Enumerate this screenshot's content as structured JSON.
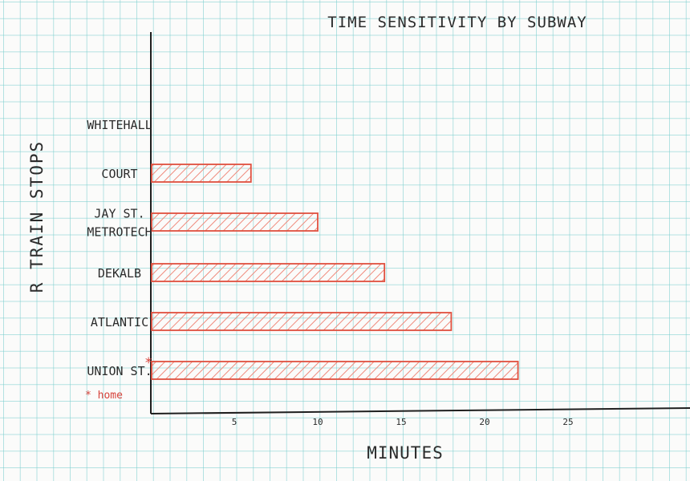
{
  "chart_data": {
    "type": "bar",
    "orientation": "horizontal",
    "title": "TIME SENSITIVITY BY SUBWAY",
    "xlabel": "MINUTES",
    "ylabel": "R TRAIN STOPS",
    "categories": [
      [
        "WHITEHALL"
      ],
      [
        "COURT"
      ],
      [
        "JAY ST.",
        "METROTECH"
      ],
      [
        "DEKALB"
      ],
      [
        "ATLANTIC"
      ],
      [
        "UNION ST."
      ]
    ],
    "values": [
      0,
      6,
      10,
      14,
      18,
      22
    ],
    "xticks": [
      "5",
      "10",
      "15",
      "20",
      "25"
    ],
    "xlim": [
      0,
      30
    ],
    "marker": "*",
    "marker_note": "* home",
    "bar_color": "#e0503f",
    "hatch_color": "#ef8a7c",
    "axis_color": "#1f1f1f",
    "grid": true,
    "grid_color": "#78cdcd"
  }
}
